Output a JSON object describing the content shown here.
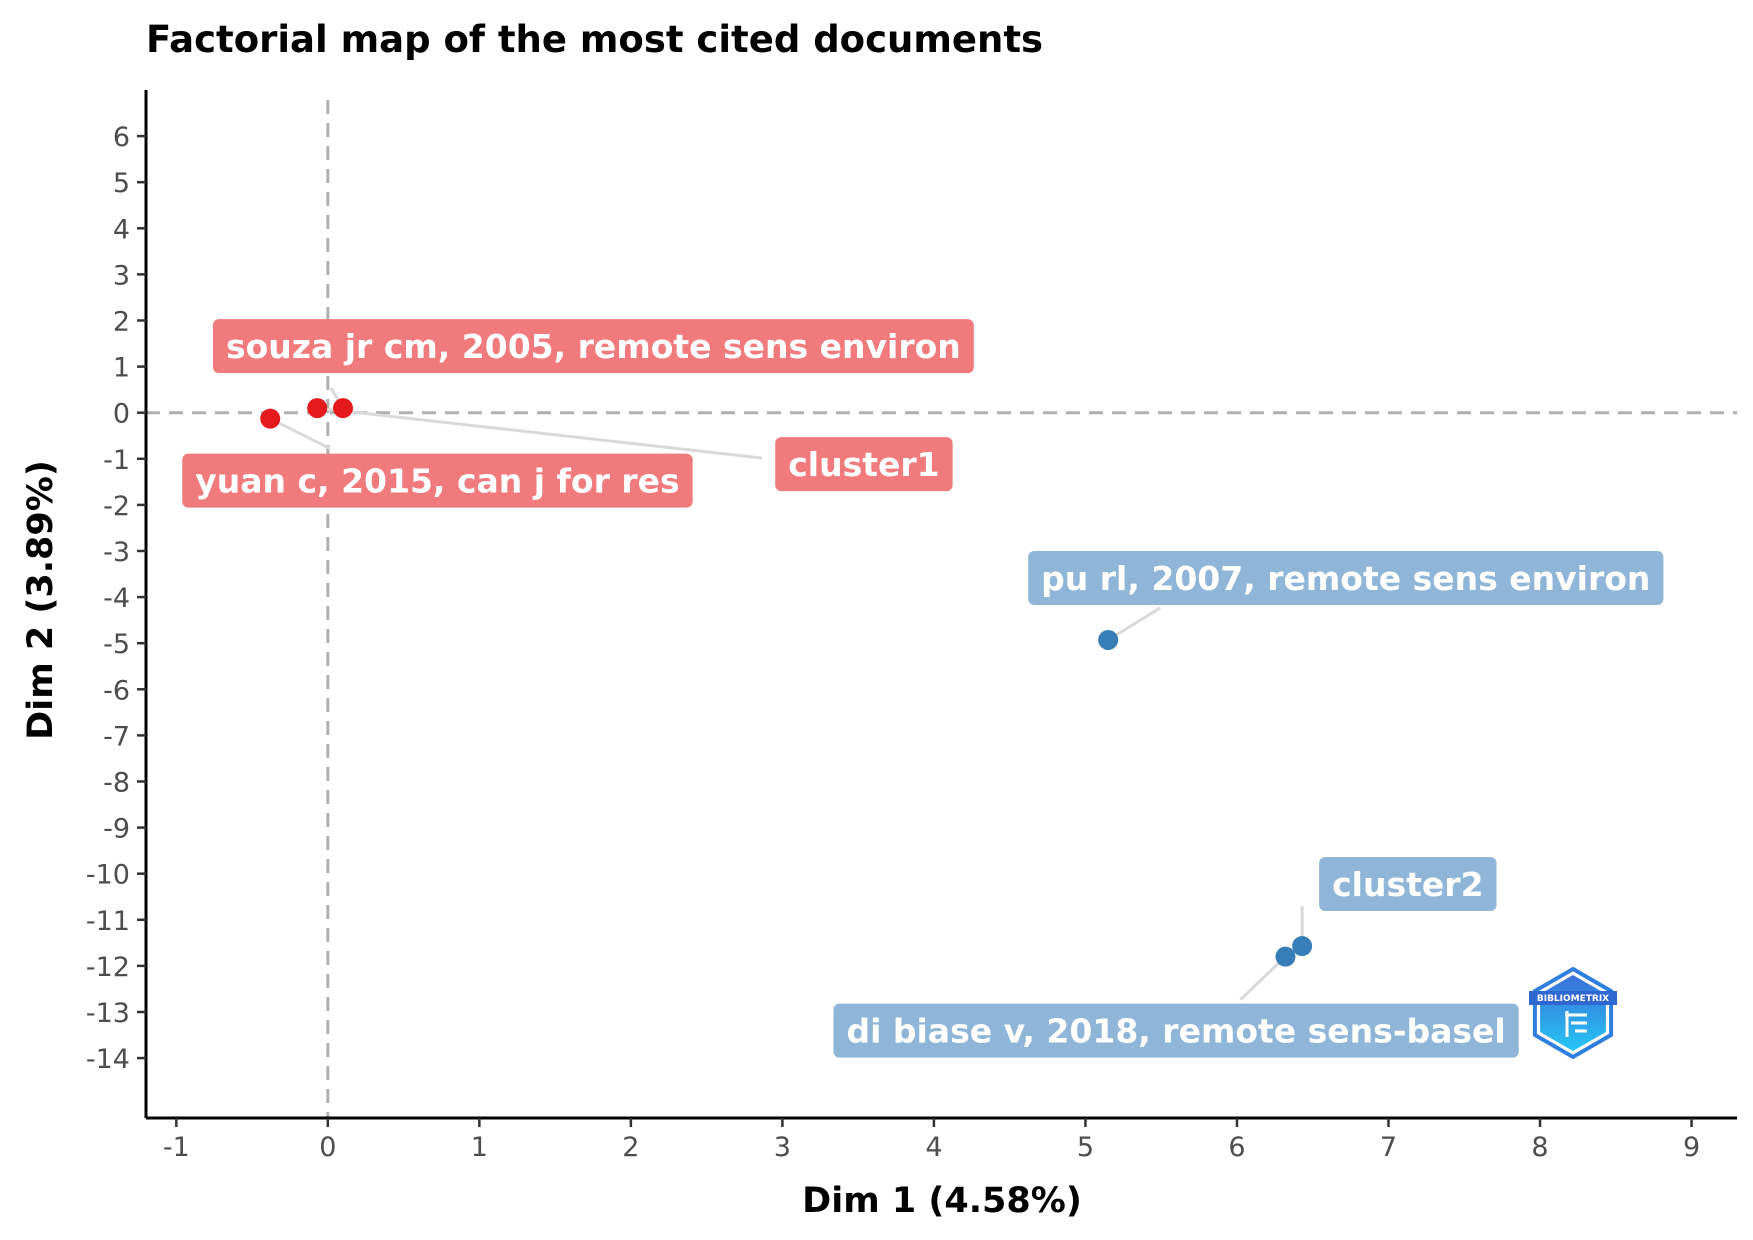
{
  "chart_data": {
    "type": "scatter",
    "title": "Factorial map of the most cited documents",
    "xlabel": "Dim 1 (4.58%)",
    "ylabel": "Dim 2 (3.89%)",
    "xlim": [
      -1.2,
      9.3
    ],
    "ylim": [
      -15.3,
      7.0
    ],
    "xticks": [
      -1,
      0,
      1,
      2,
      3,
      4,
      5,
      6,
      7,
      8,
      9
    ],
    "yticks": [
      6,
      5,
      4,
      3,
      2,
      1,
      0,
      -1,
      -2,
      -3,
      -4,
      -5,
      -6,
      -7,
      -8,
      -9,
      -10,
      -11,
      -12,
      -13,
      -14
    ],
    "reference_lines": {
      "x": 0,
      "y": 0,
      "style": "dashed"
    },
    "grid": false,
    "series": [
      {
        "cluster": "cluster1",
        "color": "#e41a1c",
        "label_color": "#f07a7c",
        "points": [
          {
            "x": -0.38,
            "y": -0.13
          },
          {
            "x": -0.07,
            "y": 0.1
          },
          {
            "x": 0.1,
            "y": 0.1
          }
        ]
      },
      {
        "cluster": "cluster2",
        "color": "#377eb8",
        "label_color": "#8fb6d8",
        "points": [
          {
            "x": 5.15,
            "y": -4.93
          },
          {
            "x": 6.32,
            "y": -11.8
          },
          {
            "x": 6.43,
            "y": -11.57
          }
        ]
      }
    ],
    "annotations": [
      {
        "text": "souza jr cm, 2005, remote sens environ",
        "cluster": "cluster1",
        "x": 0.1,
        "y": 0.1
      },
      {
        "text": "yuan c, 2015, can j for res",
        "cluster": "cluster1",
        "x": -0.38,
        "y": -0.13
      },
      {
        "text": "cluster1",
        "cluster": "cluster1",
        "x": -0.07,
        "y": 0.1
      },
      {
        "text": "pu rl, 2007, remote sens environ",
        "cluster": "cluster2",
        "x": 5.15,
        "y": -4.93
      },
      {
        "text": "cluster2",
        "cluster": "cluster2",
        "x": 6.43,
        "y": -11.57
      },
      {
        "text": "di biase v, 2018, remote sens-basel",
        "cluster": "cluster2",
        "x": 6.32,
        "y": -11.8
      }
    ],
    "logo": {
      "text": "BIBLIOMETRIX",
      "icon": "bibliometrix-logo"
    }
  }
}
